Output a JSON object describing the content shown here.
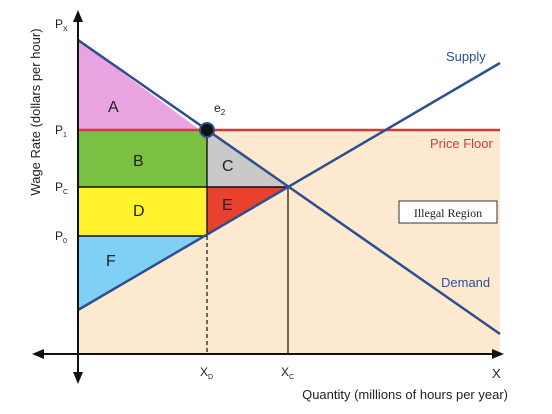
{
  "axes": {
    "y_label": "Wage Rate (dollars per hour)",
    "x_label": "Quantity (millions of hours per year)",
    "y_ticks": [
      {
        "main": "P",
        "sub": "X"
      },
      {
        "main": "P",
        "sub": "1"
      },
      {
        "main": "P",
        "sub": "C"
      },
      {
        "main": "P",
        "sub": "0"
      }
    ],
    "x_ticks": [
      {
        "main": "X",
        "sub": "D"
      },
      {
        "main": "X",
        "sub": "C"
      },
      {
        "main": "X",
        "sub": ""
      }
    ]
  },
  "curves": {
    "supply": "Supply",
    "demand": "Demand",
    "price_floor": "Price Floor"
  },
  "regions": {
    "a": "A",
    "b": "B",
    "c": "C",
    "d": "D",
    "e": "E",
    "f": "F",
    "illegal": "Illegal Region"
  },
  "point": {
    "main": "e",
    "sub": "2"
  },
  "colors": {
    "supply_demand": "#2e4f8f",
    "price_floor": "#d23b3b",
    "region_a": "#e9a3e0",
    "region_b": "#7ac143",
    "region_c": "#c9c9c9",
    "region_d": "#fff22c",
    "region_e": "#e8412e",
    "region_f": "#7fd0f4",
    "illegal_region": "#fde9cf"
  }
}
